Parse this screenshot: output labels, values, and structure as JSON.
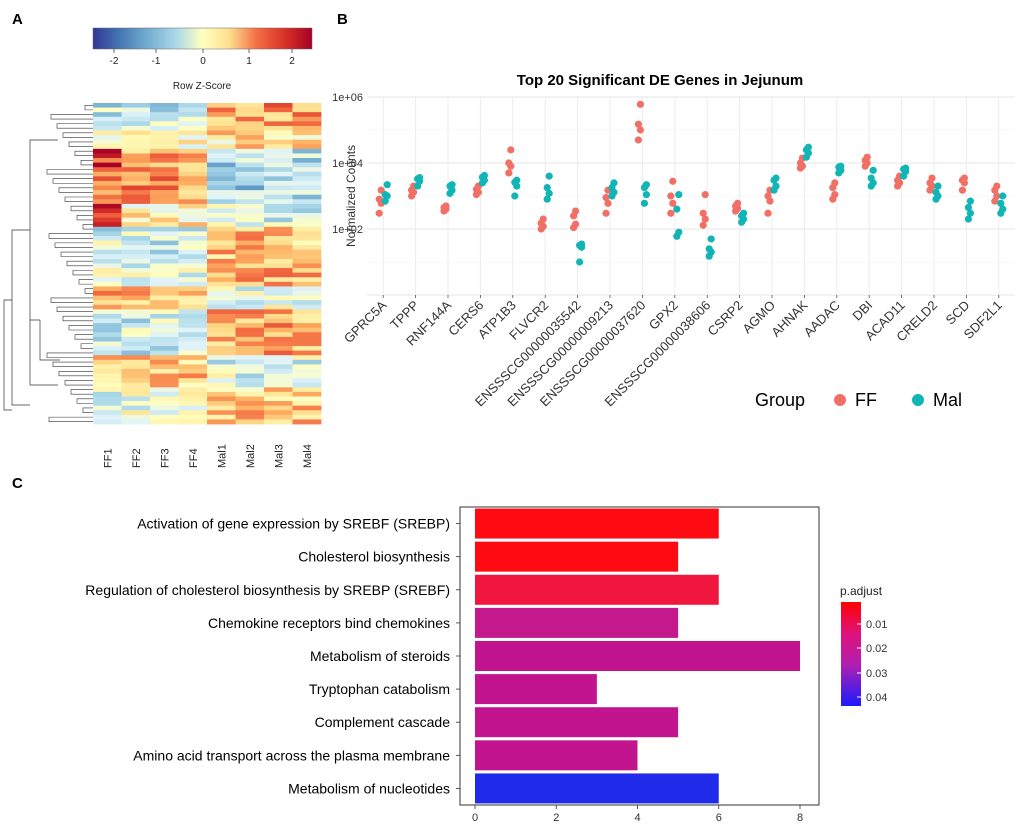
{
  "panel_labels": {
    "a": "A",
    "b": "B",
    "c": "C"
  },
  "chart_data": [
    {
      "type": "heatmap",
      "panel": "A",
      "colorbar": {
        "ticks": [
          "-2",
          "-1",
          "0",
          "1",
          "2"
        ],
        "label": "Row Z-Score",
        "colors": [
          "#313695",
          "#4575b4",
          "#74add1",
          "#abd9e9",
          "#e0f3f8",
          "#ffffbf",
          "#fee090",
          "#fdae61",
          "#f46d43",
          "#d73027",
          "#a50026"
        ]
      },
      "columns": [
        "FF1",
        "FF2",
        "FF3",
        "FF4",
        "Mal1",
        "Mal2",
        "Mal3",
        "Mal4"
      ],
      "rows": 70
    },
    {
      "type": "scatter",
      "panel": "B",
      "title": "Top 20 Significant DE Genes in Jejunum",
      "ylabel": "Normalized Counts",
      "yscale": "log10",
      "ylim": [
        1,
        1000000
      ],
      "y_ticks": [
        "1e+02",
        "1e+04",
        "1e+06"
      ],
      "groups": [
        {
          "name": "FF",
          "color": "#f07066"
        },
        {
          "name": "Mal",
          "color": "#12b5b5"
        }
      ],
      "legend_title": "Group",
      "genes": [
        {
          "name": "GPRC5A",
          "FF": [
            300,
            600,
            800,
            1500
          ],
          "Mal": [
            700,
            1000,
            1100,
            2200
          ]
        },
        {
          "name": "TPPP",
          "FF": [
            1000,
            1300,
            1500,
            2000
          ],
          "Mal": [
            2000,
            2800,
            3300,
            3600
          ]
        },
        {
          "name": "RNF144A",
          "FF": [
            350,
            400,
            450,
            500
          ],
          "Mal": [
            1200,
            1500,
            2000,
            2200
          ]
        },
        {
          "name": "CERS6",
          "FF": [
            1100,
            1300,
            1600,
            2000
          ],
          "Mal": [
            2500,
            3000,
            3700,
            4200
          ]
        },
        {
          "name": "ATP1B3",
          "FF": [
            5000,
            8000,
            10000,
            25000
          ],
          "Mal": [
            1000,
            2000,
            2600,
            3000
          ]
        },
        {
          "name": "FLVCR2",
          "FF": [
            100,
            120,
            150,
            200
          ],
          "Mal": [
            800,
            1200,
            1800,
            4000
          ]
        },
        {
          "name": "ENSSSCG00000035542",
          "FF": [
            110,
            140,
            250,
            350
          ],
          "Mal": [
            10,
            28,
            32,
            35
          ]
        },
        {
          "name": "ENSSSCG00000009213",
          "FF": [
            300,
            600,
            900,
            1500
          ],
          "Mal": [
            1000,
            1300,
            1800,
            2500
          ]
        },
        {
          "name": "ENSSSCG00000037620",
          "FF": [
            50000,
            100000,
            150000,
            600000
          ],
          "Mal": [
            600,
            1100,
            1800,
            2200
          ]
        },
        {
          "name": "GPX2",
          "FF": [
            300,
            600,
            1000,
            2800
          ],
          "Mal": [
            60,
            80,
            400,
            1100
          ]
        },
        {
          "name": "ENSSSCG00000038606",
          "FF": [
            130,
            200,
            300,
            1100
          ],
          "Mal": [
            15,
            20,
            25,
            50
          ]
        },
        {
          "name": "CSRP2",
          "FF": [
            350,
            420,
            500,
            600
          ],
          "Mal": [
            160,
            200,
            250,
            300
          ]
        },
        {
          "name": "AGMO",
          "FF": [
            300,
            700,
            1000,
            1500
          ],
          "Mal": [
            1500,
            2000,
            3000,
            3500
          ]
        },
        {
          "name": "AHNAK",
          "FF": [
            7000,
            8000,
            10000,
            14000
          ],
          "Mal": [
            15000,
            20000,
            25000,
            30000
          ]
        },
        {
          "name": "AADAC",
          "FF": [
            800,
            1100,
            1800,
            2500
          ],
          "Mal": [
            5000,
            6000,
            7500,
            8000
          ]
        },
        {
          "name": "DBI",
          "FF": [
            8000,
            10000,
            12000,
            15000
          ],
          "Mal": [
            2000,
            2500,
            3500,
            6000
          ]
        },
        {
          "name": "ACAD11",
          "FF": [
            2000,
            2500,
            3000,
            4000
          ],
          "Mal": [
            4000,
            5500,
            6500,
            7000
          ]
        },
        {
          "name": "CRELD2",
          "FF": [
            1500,
            2000,
            2500,
            3500
          ],
          "Mal": [
            800,
            1000,
            1300,
            2000
          ]
        },
        {
          "name": "SCD",
          "FF": [
            1500,
            2500,
            3000,
            3500
          ],
          "Mal": [
            200,
            300,
            450,
            700
          ]
        },
        {
          "name": "SDF2L1",
          "FF": [
            700,
            1000,
            1500,
            2000
          ],
          "Mal": [
            300,
            400,
            600,
            1000
          ]
        }
      ]
    },
    {
      "type": "bar",
      "panel": "C",
      "orientation": "horizontal",
      "categories": [
        "Activation of gene expression by SREBF (SREBP)",
        "Cholesterol biosynthesis",
        "Regulation of cholesterol biosynthesis by SREBP (SREBF)",
        "Chemokine receptors bind chemokines",
        "Metabolism of steroids",
        "Tryptophan catabolism",
        "Complement cascade",
        "Amino acid transport across the plasma membrane",
        "Metabolism of nucleotides"
      ],
      "values": [
        6,
        5,
        6,
        5,
        8,
        3,
        5,
        4,
        6
      ],
      "p_adjust": [
        0.002,
        0.003,
        0.005,
        0.022,
        0.025,
        0.025,
        0.025,
        0.025,
        0.045
      ],
      "bar_colors": [
        "#fe0a12",
        "#fe0a12",
        "#f0163e",
        "#c4198c",
        "#c2148e",
        "#c2148e",
        "#c2148e",
        "#c2148e",
        "#1f2be8"
      ],
      "xlim": [
        0,
        8.5
      ],
      "x_ticks": [
        "0",
        "2",
        "4",
        "6",
        "8"
      ],
      "legend": {
        "title": "p.adjust",
        "ticks": [
          "0.01",
          "0.02",
          "0.03",
          "0.04"
        ]
      }
    }
  ]
}
